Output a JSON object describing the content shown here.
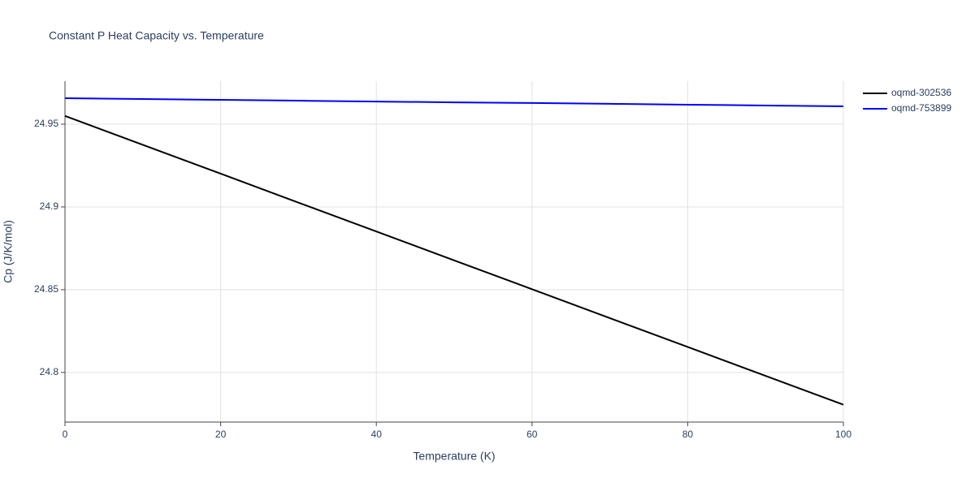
{
  "chart_data": {
    "type": "line",
    "title": "Constant P Heat Capacity vs. Temperature",
    "x_label": "Temperature (K)",
    "y_label": "Cp (J/K/mol)",
    "x": [
      0,
      10,
      20,
      30,
      40,
      50,
      60,
      70,
      80,
      90,
      100
    ],
    "series": [
      {
        "name": "oqmd-302536",
        "color": "#000000",
        "values": [
          24.955,
          24.9375,
          24.9201,
          24.9026,
          24.8852,
          24.8677,
          24.8503,
          24.8328,
          24.8154,
          24.7979,
          24.7805
        ]
      },
      {
        "name": "oqmd-753899",
        "color": "#0000ff",
        "values": [
          24.9657,
          24.9652,
          24.9647,
          24.9642,
          24.9637,
          24.9632,
          24.9628,
          24.9623,
          24.9618,
          24.9613,
          24.9608
        ]
      }
    ],
    "xlim": [
      0,
      100
    ],
    "xticks": [
      0,
      20,
      40,
      60,
      80,
      100
    ],
    "ylim": [
      24.77,
      24.976
    ],
    "yticks": [
      24.8,
      24.85,
      24.9,
      24.95
    ],
    "grid": true,
    "legend": "outside-top-right"
  }
}
